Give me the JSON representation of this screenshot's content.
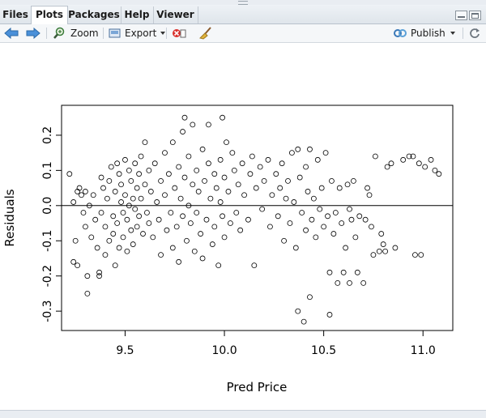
{
  "tabs": [
    "Files",
    "Plots",
    "Packages",
    "Help",
    "Viewer"
  ],
  "active_tab": "Plots",
  "toolbar": {
    "zoom_label": "Zoom",
    "export_label": "Export",
    "publish_label": "Publish"
  },
  "icons": {
    "back": "arrow-left-icon",
    "forward": "arrow-right-icon",
    "zoom": "magnifier-icon",
    "export": "export-icon",
    "remove": "remove-plot-icon",
    "clear": "broom-icon",
    "publish": "publish-icon",
    "refresh": "refresh-icon"
  },
  "chart_data": {
    "type": "scatter",
    "xlabel": "Pred Price",
    "ylabel": "Residuals",
    "xlim": [
      9.18,
      11.15
    ],
    "ylim": [
      -0.355,
      0.285
    ],
    "xticks": [
      "9.5",
      "10.0",
      "10.5",
      "11.0"
    ],
    "yticks": [
      "-0.3",
      "-0.2",
      "-0.1",
      "0.0",
      "0.1",
      "0.2"
    ],
    "hline": 0.0,
    "points": [
      [
        9.22,
        0.09
      ],
      [
        9.24,
        0.01
      ],
      [
        9.24,
        -0.16
      ],
      [
        9.25,
        -0.1
      ],
      [
        9.26,
        0.04
      ],
      [
        9.26,
        -0.17
      ],
      [
        9.27,
        0.05
      ],
      [
        9.28,
        0.03
      ],
      [
        9.29,
        -0.02
      ],
      [
        9.3,
        0.04
      ],
      [
        9.3,
        -0.06
      ],
      [
        9.31,
        -0.25
      ],
      [
        9.31,
        -0.2
      ],
      [
        9.32,
        0.0
      ],
      [
        9.33,
        -0.09
      ],
      [
        9.34,
        0.03
      ],
      [
        9.35,
        -0.04
      ],
      [
        9.36,
        -0.12
      ],
      [
        9.37,
        -0.19
      ],
      [
        9.37,
        -0.2
      ],
      [
        9.38,
        0.08
      ],
      [
        9.38,
        -0.02
      ],
      [
        9.39,
        0.05
      ],
      [
        9.4,
        -0.06
      ],
      [
        9.4,
        -0.14
      ],
      [
        9.41,
        0.02
      ],
      [
        9.42,
        0.07
      ],
      [
        9.42,
        -0.1
      ],
      [
        9.43,
        0.11
      ],
      [
        9.44,
        -0.03
      ],
      [
        9.44,
        -0.08
      ],
      [
        9.45,
        0.04
      ],
      [
        9.45,
        -0.17
      ],
      [
        9.46,
        0.12
      ],
      [
        9.46,
        -0.05
      ],
      [
        9.47,
        0.09
      ],
      [
        9.47,
        -0.12
      ],
      [
        9.48,
        0.01
      ],
      [
        9.48,
        0.06
      ],
      [
        9.49,
        -0.02
      ],
      [
        9.49,
        -0.09
      ],
      [
        9.5,
        0.13
      ],
      [
        9.5,
        0.03
      ],
      [
        9.51,
        -0.04
      ],
      [
        9.51,
        -0.13
      ],
      [
        9.52,
        0.1
      ],
      [
        9.52,
        0.0
      ],
      [
        9.53,
        0.07
      ],
      [
        9.53,
        -0.07
      ],
      [
        9.54,
        0.02
      ],
      [
        9.54,
        -0.11
      ],
      [
        9.55,
        0.12
      ],
      [
        9.55,
        -0.01
      ],
      [
        9.56,
        0.05
      ],
      [
        9.56,
        -0.06
      ],
      [
        9.57,
        0.09
      ],
      [
        9.57,
        -0.03
      ],
      [
        9.58,
        0.14
      ],
      [
        9.58,
        0.02
      ],
      [
        9.59,
        -0.08
      ],
      [
        9.6,
        0.18
      ],
      [
        9.6,
        0.06
      ],
      [
        9.61,
        -0.02
      ],
      [
        9.62,
        0.1
      ],
      [
        9.62,
        -0.05
      ],
      [
        9.63,
        0.04
      ],
      [
        9.64,
        -0.09
      ],
      [
        9.65,
        0.12
      ],
      [
        9.66,
        0.01
      ],
      [
        9.67,
        -0.04
      ],
      [
        9.68,
        0.07
      ],
      [
        9.68,
        -0.14
      ],
      [
        9.7,
        0.15
      ],
      [
        9.7,
        0.03
      ],
      [
        9.71,
        -0.07
      ],
      [
        9.72,
        0.09
      ],
      [
        9.73,
        -0.02
      ],
      [
        9.74,
        0.18
      ],
      [
        9.74,
        -0.12
      ],
      [
        9.75,
        0.05
      ],
      [
        9.76,
        -0.06
      ],
      [
        9.77,
        0.11
      ],
      [
        9.77,
        -0.16
      ],
      [
        9.78,
        0.02
      ],
      [
        9.79,
        0.21
      ],
      [
        9.79,
        -0.03
      ],
      [
        9.8,
        0.25
      ],
      [
        9.8,
        0.08
      ],
      [
        9.81,
        -0.1
      ],
      [
        9.82,
        0.14
      ],
      [
        9.82,
        0.0
      ],
      [
        9.83,
        -0.05
      ],
      [
        9.84,
        0.23
      ],
      [
        9.84,
        0.06
      ],
      [
        9.85,
        -0.13
      ],
      [
        9.86,
        0.1
      ],
      [
        9.86,
        -0.02
      ],
      [
        9.87,
        0.04
      ],
      [
        9.88,
        -0.08
      ],
      [
        9.89,
        0.16
      ],
      [
        9.89,
        -0.15
      ],
      [
        9.9,
        0.07
      ],
      [
        9.91,
        -0.04
      ],
      [
        9.92,
        0.23
      ],
      [
        9.92,
        0.12
      ],
      [
        9.93,
        0.02
      ],
      [
        9.94,
        -0.11
      ],
      [
        9.95,
        0.09
      ],
      [
        9.95,
        -0.06
      ],
      [
        9.96,
        0.05
      ],
      [
        9.97,
        -0.17
      ],
      [
        9.98,
        0.13
      ],
      [
        9.98,
        0.01
      ],
      [
        9.99,
        0.25
      ],
      [
        9.99,
        -0.03
      ],
      [
        10.0,
        0.08
      ],
      [
        10.0,
        -0.09
      ],
      [
        10.01,
        0.18
      ],
      [
        10.02,
        0.04
      ],
      [
        10.03,
        -0.05
      ],
      [
        10.04,
        0.15
      ],
      [
        10.05,
        0.1
      ],
      [
        10.06,
        -0.02
      ],
      [
        10.07,
        0.06
      ],
      [
        10.08,
        -0.07
      ],
      [
        10.09,
        0.12
      ],
      [
        10.1,
        0.03
      ],
      [
        10.12,
        -0.04
      ],
      [
        10.13,
        0.09
      ],
      [
        10.14,
        0.14
      ],
      [
        10.15,
        -0.17
      ],
      [
        10.16,
        0.05
      ],
      [
        10.18,
        0.11
      ],
      [
        10.19,
        -0.01
      ],
      [
        10.2,
        0.07
      ],
      [
        10.22,
        0.13
      ],
      [
        10.23,
        -0.06
      ],
      [
        10.24,
        0.03
      ],
      [
        10.26,
        0.09
      ],
      [
        10.27,
        -0.03
      ],
      [
        10.28,
        0.05
      ],
      [
        10.29,
        0.12
      ],
      [
        10.3,
        -0.1
      ],
      [
        10.31,
        0.02
      ],
      [
        10.32,
        0.07
      ],
      [
        10.33,
        -0.05
      ],
      [
        10.34,
        0.15
      ],
      [
        10.35,
        0.01
      ],
      [
        10.36,
        -0.12
      ],
      [
        10.37,
        0.16
      ],
      [
        10.37,
        -0.3
      ],
      [
        10.38,
        0.08
      ],
      [
        10.39,
        -0.02
      ],
      [
        10.4,
        -0.33
      ],
      [
        10.41,
        0.11
      ],
      [
        10.41,
        -0.07
      ],
      [
        10.42,
        0.04
      ],
      [
        10.43,
        -0.26
      ],
      [
        10.43,
        0.16
      ],
      [
        10.44,
        -0.04
      ],
      [
        10.45,
        0.02
      ],
      [
        10.46,
        -0.09
      ],
      [
        10.47,
        0.13
      ],
      [
        10.48,
        -0.01
      ],
      [
        10.49,
        0.05
      ],
      [
        10.5,
        -0.06
      ],
      [
        10.51,
        0.15
      ],
      [
        10.52,
        -0.03
      ],
      [
        10.53,
        -0.19
      ],
      [
        10.53,
        -0.31
      ],
      [
        10.54,
        0.07
      ],
      [
        10.55,
        -0.08
      ],
      [
        10.56,
        -0.02
      ],
      [
        10.57,
        -0.22
      ],
      [
        10.58,
        0.05
      ],
      [
        10.59,
        -0.05
      ],
      [
        10.6,
        -0.19
      ],
      [
        10.61,
        -0.12
      ],
      [
        10.62,
        0.06
      ],
      [
        10.63,
        -0.01
      ],
      [
        10.63,
        -0.22
      ],
      [
        10.64,
        -0.04
      ],
      [
        10.65,
        0.07
      ],
      [
        10.66,
        -0.09
      ],
      [
        10.67,
        -0.19
      ],
      [
        10.68,
        -0.03
      ],
      [
        10.7,
        -0.22
      ],
      [
        10.71,
        -0.04
      ],
      [
        10.72,
        0.05
      ],
      [
        10.73,
        0.03
      ],
      [
        10.74,
        -0.06
      ],
      [
        10.75,
        -0.14
      ],
      [
        10.76,
        0.14
      ],
      [
        10.78,
        -0.13
      ],
      [
        10.79,
        -0.08
      ],
      [
        10.8,
        -0.11
      ],
      [
        10.81,
        -0.13
      ],
      [
        10.82,
        0.11
      ],
      [
        10.84,
        0.12
      ],
      [
        10.86,
        -0.12
      ],
      [
        10.9,
        0.13
      ],
      [
        10.93,
        0.14
      ],
      [
        10.95,
        0.14
      ],
      [
        10.96,
        -0.14
      ],
      [
        10.98,
        0.12
      ],
      [
        10.99,
        -0.14
      ],
      [
        11.01,
        0.11
      ],
      [
        11.04,
        0.13
      ],
      [
        11.06,
        0.1
      ],
      [
        11.08,
        0.09
      ]
    ]
  }
}
